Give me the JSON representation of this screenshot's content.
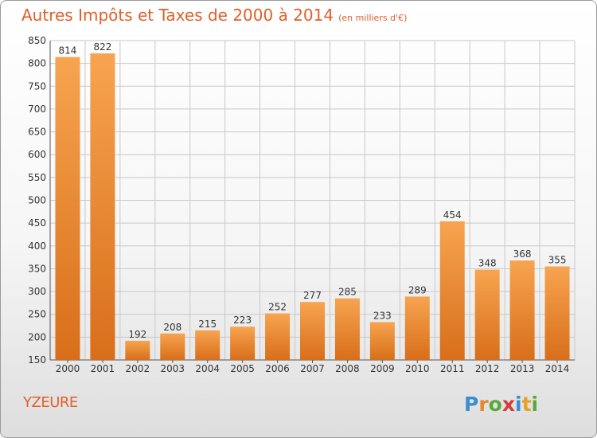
{
  "header": {
    "title": "Autres Impôts et Taxes de 2000 à 2014",
    "subtitle": "(en milliers d'€)"
  },
  "footer": {
    "city": "YZEURE",
    "logo_text": "Proxiti"
  },
  "colors": {
    "title": "#e0602a",
    "bar_light": "#f7a450",
    "bar_dark": "#d86e1a",
    "grid": "#c8c8c8"
  },
  "chart_data": {
    "type": "bar",
    "title": "Autres Impôts et Taxes de 2000 à 2014",
    "subtitle": "(en milliers d'€)",
    "xlabel": "",
    "ylabel": "",
    "categories": [
      "2000",
      "2001",
      "2002",
      "2003",
      "2004",
      "2005",
      "2006",
      "2007",
      "2008",
      "2009",
      "2010",
      "2011",
      "2012",
      "2013",
      "2014"
    ],
    "values": [
      814,
      822,
      192,
      208,
      215,
      223,
      252,
      277,
      285,
      233,
      289,
      454,
      348,
      368,
      355
    ],
    "ylim": [
      150,
      850
    ],
    "yticks": [
      150,
      200,
      250,
      300,
      350,
      400,
      450,
      500,
      550,
      600,
      650,
      700,
      750,
      800,
      850
    ],
    "grid": true,
    "data_labels": true
  }
}
